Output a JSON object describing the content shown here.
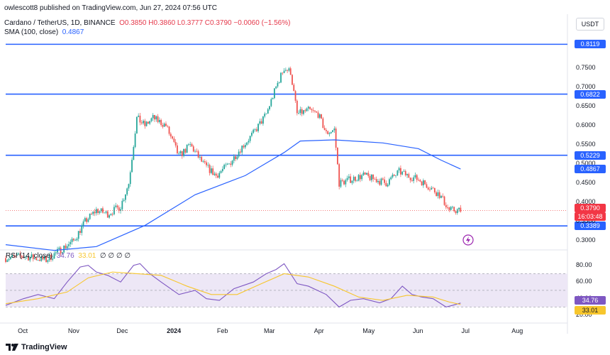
{
  "header": {
    "publisher": "owlescott8 published on TradingView.com, Jun 27, 2024 07:56 UTC",
    "symbol": "Cardano / TetherUS, 1D, BINANCE",
    "ohlc": "O0.3850 H0.3860 L0.3777 C0.3790 −0.0060 (−1.56%)",
    "sma_label": "SMA (100, close)",
    "sma_value": "0.4867",
    "quote_currency": "USDT"
  },
  "rsi_header": {
    "label": "RSI (14, close)",
    "rsi_value": "34.76",
    "ma_value": "33.01",
    "placeholders": "∅ ∅ ∅ ∅"
  },
  "footer": {
    "brand": "TradingView"
  },
  "colors": {
    "up": "#26a69a",
    "down": "#ef5350",
    "sma": "#2962ff",
    "level_line": "#2962ff",
    "rsi": "#7e57c2",
    "rsi_ma": "#f7c62d",
    "rsi_band": "#ede7f6"
  },
  "chart_data": [
    {
      "type": "candlestick",
      "title": "Cardano / TetherUS, 1D, BINANCE",
      "x_labels": [
        "Oct",
        "Nov",
        "Dec",
        "2024",
        "Feb",
        "Mar",
        "Apr",
        "May",
        "Jun",
        "Jul",
        "Aug"
      ],
      "y_ticks": [
        "0.3000",
        "0.3500",
        "0.4000",
        "0.4500",
        "0.5000",
        "0.5500",
        "0.6000",
        "0.6500",
        "0.7000",
        "0.7500"
      ],
      "ylim": [
        0.28,
        0.82
      ],
      "horizontal_levels": [
        0.8119,
        0.6822,
        0.5229,
        0.3389
      ],
      "level_labels": [
        "0.8119",
        "0.6822",
        "0.5229",
        "0.3389"
      ],
      "sma_label": "0.4867",
      "last_price_label": "0.3790",
      "countdown": "16:03:48",
      "close_path": [
        [
          "2023-09-20",
          0.255
        ],
        [
          "2023-10-01",
          0.26
        ],
        [
          "2023-10-15",
          0.25
        ],
        [
          "2023-10-25",
          0.28
        ],
        [
          "2023-11-01",
          0.3
        ],
        [
          "2023-11-08",
          0.35
        ],
        [
          "2023-11-15",
          0.38
        ],
        [
          "2023-11-22",
          0.37
        ],
        [
          "2023-11-30",
          0.39
        ],
        [
          "2023-12-05",
          0.45
        ],
        [
          "2023-12-10",
          0.62
        ],
        [
          "2023-12-15",
          0.6
        ],
        [
          "2023-12-20",
          0.62
        ],
        [
          "2023-12-28",
          0.6
        ],
        [
          "2024-01-05",
          0.52
        ],
        [
          "2024-01-12",
          0.55
        ],
        [
          "2024-01-20",
          0.5
        ],
        [
          "2024-01-28",
          0.47
        ],
        [
          "2024-02-05",
          0.5
        ],
        [
          "2024-02-12",
          0.54
        ],
        [
          "2024-02-20",
          0.58
        ],
        [
          "2024-02-28",
          0.63
        ],
        [
          "2024-03-05",
          0.7
        ],
        [
          "2024-03-10",
          0.75
        ],
        [
          "2024-03-14",
          0.74
        ],
        [
          "2024-03-18",
          0.63
        ],
        [
          "2024-03-25",
          0.64
        ],
        [
          "2024-03-31",
          0.63
        ],
        [
          "2024-04-05",
          0.58
        ],
        [
          "2024-04-10",
          0.59
        ],
        [
          "2024-04-13",
          0.45
        ],
        [
          "2024-04-20",
          0.46
        ],
        [
          "2024-04-28",
          0.47
        ],
        [
          "2024-05-05",
          0.46
        ],
        [
          "2024-05-12",
          0.45
        ],
        [
          "2024-05-20",
          0.48
        ],
        [
          "2024-05-25",
          0.47
        ],
        [
          "2024-06-01",
          0.46
        ],
        [
          "2024-06-08",
          0.44
        ],
        [
          "2024-06-14",
          0.42
        ],
        [
          "2024-06-20",
          0.38
        ],
        [
          "2024-06-27",
          0.379
        ]
      ],
      "sma_path": [
        [
          "2023-09-20",
          0.29
        ],
        [
          "2023-10-20",
          0.275
        ],
        [
          "2023-11-15",
          0.285
        ],
        [
          "2023-12-15",
          0.34
        ],
        [
          "2024-01-15",
          0.42
        ],
        [
          "2024-02-15",
          0.47
        ],
        [
          "2024-03-10",
          0.53
        ],
        [
          "2024-03-20",
          0.56
        ],
        [
          "2024-04-10",
          0.563
        ],
        [
          "2024-05-10",
          0.555
        ],
        [
          "2024-06-01",
          0.54
        ],
        [
          "2024-06-15",
          0.51
        ],
        [
          "2024-06-27",
          0.487
        ]
      ]
    },
    {
      "type": "line",
      "title": "RSI (14, close)",
      "y_ticks": [
        "20.00",
        "40.00",
        "60.00",
        "80.00"
      ],
      "ylim": [
        15,
        90
      ],
      "band": [
        30,
        70
      ],
      "series": [
        {
          "name": "RSI",
          "points": [
            [
              "2023-09-20",
              32
            ],
            [
              "2023-10-01",
              40
            ],
            [
              "2023-10-10",
              45
            ],
            [
              "2023-10-20",
              40
            ],
            [
              "2023-10-28",
              60
            ],
            [
              "2023-11-05",
              78
            ],
            [
              "2023-11-10",
              80
            ],
            [
              "2023-11-15",
              72
            ],
            [
              "2023-11-22",
              68
            ],
            [
              "2023-11-30",
              60
            ],
            [
              "2023-12-08",
              80
            ],
            [
              "2023-12-12",
              82
            ],
            [
              "2023-12-18",
              70
            ],
            [
              "2023-12-25",
              60
            ],
            [
              "2024-01-05",
              45
            ],
            [
              "2024-01-15",
              50
            ],
            [
              "2024-01-22",
              40
            ],
            [
              "2024-01-30",
              38
            ],
            [
              "2024-02-08",
              52
            ],
            [
              "2024-02-20",
              60
            ],
            [
              "2024-02-28",
              70
            ],
            [
              "2024-03-05",
              75
            ],
            [
              "2024-03-10",
              82
            ],
            [
              "2024-03-18",
              58
            ],
            [
              "2024-03-25",
              55
            ],
            [
              "2024-04-05",
              45
            ],
            [
              "2024-04-13",
              30
            ],
            [
              "2024-04-20",
              38
            ],
            [
              "2024-04-28",
              40
            ],
            [
              "2024-05-08",
              35
            ],
            [
              "2024-05-15",
              40
            ],
            [
              "2024-05-22",
              55
            ],
            [
              "2024-05-28",
              45
            ],
            [
              "2024-06-03",
              42
            ],
            [
              "2024-06-10",
              40
            ],
            [
              "2024-06-18",
              30
            ],
            [
              "2024-06-22",
              32
            ],
            [
              "2024-06-27",
              34.76
            ]
          ]
        },
        {
          "name": "RSI MA",
          "points": [
            [
              "2023-09-20",
              34
            ],
            [
              "2023-10-10",
              40
            ],
            [
              "2023-10-28",
              48
            ],
            [
              "2023-11-10",
              65
            ],
            [
              "2023-11-25",
              72
            ],
            [
              "2023-12-10",
              70
            ],
            [
              "2023-12-25",
              68
            ],
            [
              "2024-01-10",
              55
            ],
            [
              "2024-01-25",
              45
            ],
            [
              "2024-02-10",
              45
            ],
            [
              "2024-02-25",
              58
            ],
            [
              "2024-03-10",
              70
            ],
            [
              "2024-03-25",
              66
            ],
            [
              "2024-04-10",
              55
            ],
            [
              "2024-04-25",
              42
            ],
            [
              "2024-05-10",
              38
            ],
            [
              "2024-05-25",
              44
            ],
            [
              "2024-06-10",
              42
            ],
            [
              "2024-06-20",
              36
            ],
            [
              "2024-06-27",
              33.01
            ]
          ]
        }
      ]
    }
  ]
}
